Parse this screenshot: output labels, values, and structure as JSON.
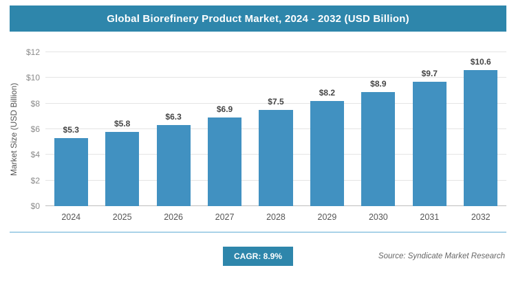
{
  "header": {
    "title": "Global Biorefinery Product Market, 2024 - 2032 (USD Billion)"
  },
  "chart_data": {
    "type": "bar",
    "title": "Global Biorefinery Product Market, 2024 - 2032 (USD Billion)",
    "categories": [
      "2024",
      "2025",
      "2026",
      "2027",
      "2028",
      "2029",
      "2030",
      "2031",
      "2032"
    ],
    "values": [
      5.3,
      5.8,
      6.3,
      6.9,
      7.5,
      8.2,
      8.9,
      9.7,
      10.6
    ],
    "value_labels": [
      "$5.3",
      "$5.8",
      "$6.3",
      "$6.9",
      "$7.5",
      "$8.2",
      "$8.9",
      "$9.7",
      "$10.6"
    ],
    "xlabel": "",
    "ylabel": "Market Size (USD Billion)",
    "ylim": [
      0,
      12
    ],
    "yticks": [
      0,
      2,
      4,
      6,
      8,
      10,
      12
    ],
    "ytick_labels": [
      "$0",
      "$2",
      "$4",
      "$6",
      "$8",
      "$10",
      "$12"
    ],
    "grid": "horizontal",
    "legend": "none",
    "bar_color": "#4191c1"
  },
  "footer": {
    "cagr_label": "CAGR: 8.9%",
    "source": "Source: Syndicate Market Research"
  },
  "colors": {
    "banner": "#2e86ab",
    "bar": "#4191c1",
    "badge": "#2e86ab",
    "separator": "#a9d2e8"
  }
}
